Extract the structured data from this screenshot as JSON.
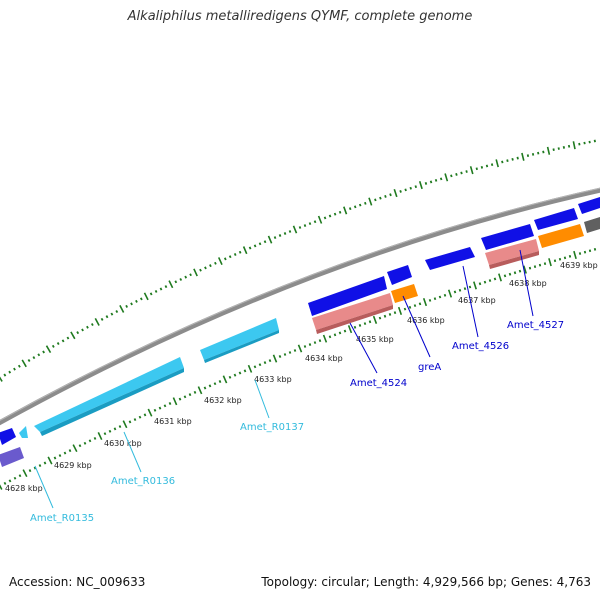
{
  "title": "Alkaliphilus metalliredigens QYMF, complete genome",
  "footer": {
    "accession": "Accession: NC_009633",
    "summary": "Topology: circular; Length: 4,929,566 bp; Genes: 4,763"
  },
  "colors": {
    "backbone": "#8c8c8c",
    "ticks": "#1f7a1f",
    "cds_blue": "#1010e6",
    "rna_cyan": "#3cc8f0",
    "pink": "#e88a8a",
    "orange": "#ff8c00",
    "purple": "#6a5acd",
    "grey": "#606060",
    "label_blue": "#0000cc",
    "label_cyan": "#33bbdd"
  },
  "scale_labels": [
    "4628 kbp",
    "4629 kbp",
    "4630 kbp",
    "4631 kbp",
    "4632 kbp",
    "4633 kbp",
    "4634 kbp",
    "4635 kbp",
    "4636 kbp",
    "4637 kbp",
    "4638 kbp",
    "4639 kbp"
  ],
  "gene_labels": [
    {
      "text": "Amet_R0135",
      "color": "cyan"
    },
    {
      "text": "Amet_R0136",
      "color": "cyan"
    },
    {
      "text": "Amet_R0137",
      "color": "cyan"
    },
    {
      "text": "Amet_4524",
      "color": "blue"
    },
    {
      "text": "greA",
      "color": "blue"
    },
    {
      "text": "Amet_4526",
      "color": "blue"
    },
    {
      "text": "Amet_4527",
      "color": "blue"
    }
  ]
}
